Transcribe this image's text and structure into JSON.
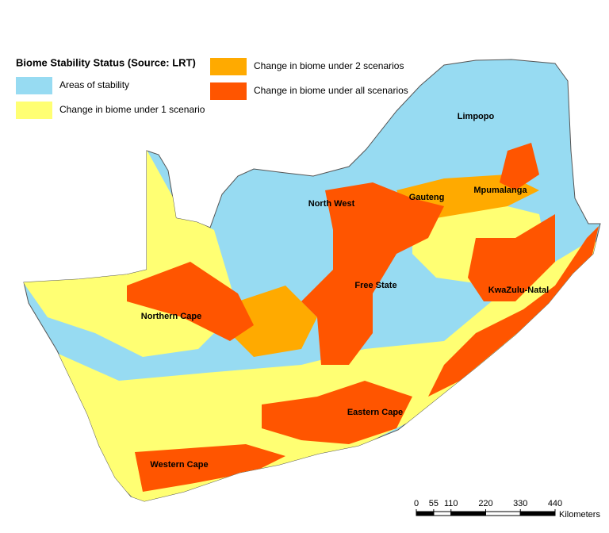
{
  "legend": {
    "title": "Biome Stability Status (Source: LRT)",
    "items": [
      {
        "label": "Areas of stability",
        "color": "#97dbf2"
      },
      {
        "label": "Change in biome under 1 scenario",
        "color": "#ffff73"
      },
      {
        "label": "Change in biome under 2 scenarios",
        "color": "#ffaa00"
      },
      {
        "label": "Change in biome under all scenarios",
        "color": "#ff5500"
      }
    ]
  },
  "provinces": [
    "Limpopo",
    "North West",
    "Gauteng",
    "Mpumalanga",
    "Free State",
    "KwaZulu-Natal",
    "Northern Cape",
    "Eastern Cape",
    "Western Cape"
  ],
  "scale": {
    "ticks": [
      0,
      55,
      110,
      220,
      330,
      440
    ],
    "unit": "Kilometers"
  }
}
